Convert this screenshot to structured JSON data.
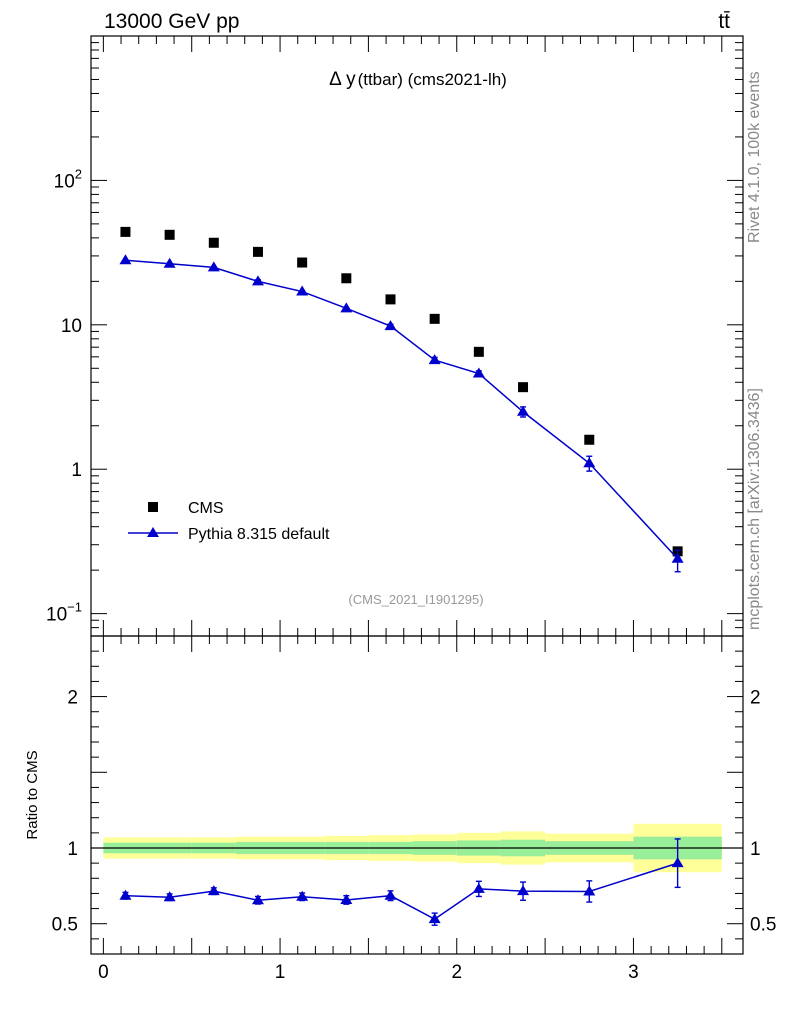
{
  "header": {
    "left_label": "13000 GeV pp",
    "right_label": "tt̄"
  },
  "side_labels": {
    "rivet": "Rivet 4.1.0,  100k events",
    "mcplots": "mcplots.cern.ch [arXiv:1306.3436]"
  },
  "colors": {
    "data": "#000000",
    "mc": "#0000cc",
    "band_inner": "#99ee99",
    "band_outer": "#ffff99",
    "side_text": "#888888",
    "watermark": "#999999"
  },
  "chart_data": [
    {
      "type": "scatter",
      "panel": "main",
      "title_main": "Δ y",
      "title_sub": "(ttbar) (cms2021-lh)",
      "watermark": "(CMS_2021_I1901295)",
      "yscale": "log",
      "ylim": [
        0.07,
        1000
      ],
      "xlim": [
        -0.07,
        3.62
      ],
      "ytick_values": [
        0.1,
        1,
        10,
        100
      ],
      "ytick_labels": [
        {
          "base": "10",
          "exp": "−1"
        },
        {
          "base": "1",
          "exp": ""
        },
        {
          "base": "10",
          "exp": ""
        },
        {
          "base": "10",
          "exp": "2"
        }
      ],
      "legend_position": "bottom-left",
      "series": [
        {
          "name": "CMS",
          "marker": "square",
          "x": [
            0.125,
            0.375,
            0.625,
            0.875,
            1.125,
            1.375,
            1.625,
            1.875,
            2.125,
            2.375,
            2.75,
            3.25
          ],
          "y": [
            44,
            42,
            37,
            32,
            27,
            21,
            15,
            11,
            6.5,
            3.7,
            1.6,
            0.27
          ]
        },
        {
          "name": "Pythia 8.315 default",
          "marker": "triangle",
          "x": [
            0.125,
            0.375,
            0.625,
            0.875,
            1.125,
            1.375,
            1.625,
            1.875,
            2.125,
            2.375,
            2.75,
            3.25
          ],
          "y": [
            28,
            26.5,
            25,
            20,
            17,
            13,
            9.8,
            5.7,
            4.6,
            2.5,
            1.1,
            0.24
          ],
          "err_low": [
            0.6,
            0.6,
            0.5,
            0.5,
            0.4,
            0.3,
            0.3,
            0.25,
            0.2,
            0.2,
            0.13,
            0.045
          ],
          "err_high": [
            0.6,
            0.6,
            0.5,
            0.5,
            0.4,
            0.3,
            0.3,
            0.25,
            0.2,
            0.2,
            0.13,
            0.035
          ]
        }
      ]
    },
    {
      "type": "scatter",
      "panel": "ratio",
      "ylabel": "Ratio to CMS",
      "ylim": [
        0.3,
        2.4
      ],
      "xlim": [
        -0.07,
        3.62
      ],
      "ytick_labels": [
        "0.5",
        "1",
        "2"
      ],
      "xtick_labels": [
        "0",
        "1",
        "2",
        "3"
      ],
      "band": {
        "edges": [
          0,
          0.25,
          0.5,
          0.75,
          1.0,
          1.25,
          1.5,
          1.75,
          2.0,
          2.25,
          2.5,
          3.0,
          3.5
        ],
        "inner": [
          0.035,
          0.035,
          0.035,
          0.04,
          0.04,
          0.04,
          0.04,
          0.045,
          0.05,
          0.055,
          0.045,
          0.075
        ],
        "outer": [
          0.07,
          0.07,
          0.07,
          0.075,
          0.075,
          0.08,
          0.085,
          0.09,
          0.1,
          0.11,
          0.095,
          0.16
        ]
      },
      "series": [
        {
          "name": "Pythia 8.315 default / CMS",
          "x": [
            0.125,
            0.375,
            0.625,
            0.875,
            1.125,
            1.375,
            1.625,
            1.875,
            2.125,
            2.375,
            2.75,
            3.25
          ],
          "y": [
            0.685,
            0.675,
            0.715,
            0.655,
            0.678,
            0.657,
            0.685,
            0.53,
            0.73,
            0.715,
            0.713,
            0.9
          ],
          "err": [
            0.022,
            0.022,
            0.022,
            0.025,
            0.025,
            0.028,
            0.032,
            0.04,
            0.05,
            0.06,
            0.07,
            0.16
          ]
        }
      ]
    }
  ]
}
